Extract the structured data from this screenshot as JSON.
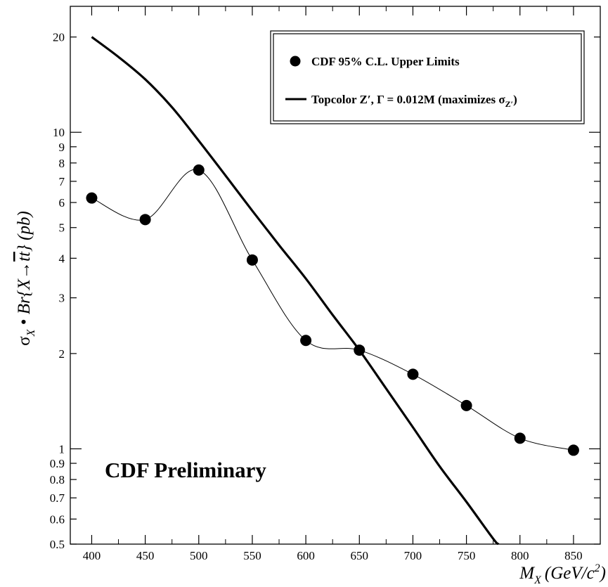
{
  "chart_data": {
    "type": "line",
    "x_scale": "linear",
    "y_scale": "log",
    "xlim": [
      380,
      875
    ],
    "ylim": [
      0.5,
      25
    ],
    "xlabel": {
      "main": "M",
      "sub": "X",
      "units": "(GeV/c",
      "sup": "2",
      "close": ")"
    },
    "ylabel": {
      "sigma": "σ",
      "sub": "X",
      "bullet": " • ",
      "br": "Br{X→",
      "tt": "tt",
      "close": "} (pb)"
    },
    "x_ticks": [
      400,
      450,
      500,
      550,
      600,
      650,
      700,
      750,
      800,
      850
    ],
    "y_ticks": [
      0.5,
      0.6,
      0.7,
      0.8,
      0.9,
      1,
      2,
      3,
      4,
      5,
      6,
      7,
      8,
      9,
      10,
      20
    ],
    "annotation": "CDF Preliminary",
    "legend": {
      "placement": "top-right",
      "entries": [
        {
          "marker": "circle",
          "label": "CDF 95% C.L. Upper Limits"
        },
        {
          "marker": "line",
          "label_main": "Topcolor Z′, Γ = 0.012M (maximizes σ",
          "label_sub": "Z′",
          "label_close": ")"
        }
      ]
    },
    "series": [
      {
        "name": "CDF 95% C.L. Upper Limits",
        "style": "points-smooth-thin",
        "x": [
          400,
          450,
          500,
          550,
          600,
          650,
          700,
          750,
          800,
          850
        ],
        "y": [
          6.2,
          5.3,
          7.6,
          3.95,
          2.2,
          2.05,
          1.72,
          1.37,
          1.08,
          0.99
        ]
      },
      {
        "name": "Topcolor Z′, Γ = 0.012M (maximizes σZ′)",
        "style": "line-thick",
        "x": [
          400,
          425,
          450,
          475,
          500,
          525,
          550,
          575,
          600,
          625,
          650,
          675,
          700,
          725,
          750,
          775,
          780
        ],
        "y": [
          20,
          17.3,
          14.7,
          12.0,
          9.4,
          7.3,
          5.65,
          4.4,
          3.45,
          2.65,
          2.05,
          1.55,
          1.17,
          0.88,
          0.68,
          0.52,
          0.5
        ]
      }
    ],
    "colors": {
      "ink": "#000000",
      "background": "#ffffff"
    }
  }
}
